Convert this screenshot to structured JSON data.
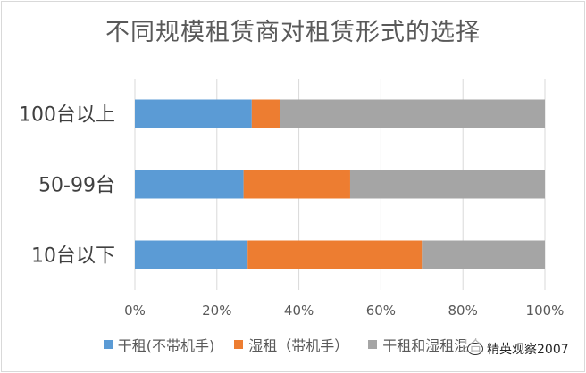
{
  "chart_data": {
    "type": "bar",
    "orientation": "horizontal",
    "stacked": "percent",
    "title": "不同规模租赁商对租赁形式的选择",
    "categories": [
      "100台以上",
      "50-99台",
      "10台以下"
    ],
    "series": [
      {
        "name": "干租(不带机手)",
        "values": [
          28.5,
          26.5,
          27.5
        ],
        "color": "#5b9bd5"
      },
      {
        "name": "湿租（带机手）",
        "values": [
          7.0,
          26.0,
          42.5
        ],
        "color": "#ed7d31"
      },
      {
        "name": "干租和湿租混合",
        "values": [
          64.5,
          47.5,
          30.0
        ],
        "color": "#a5a5a5"
      }
    ],
    "xlim": [
      0,
      100
    ],
    "xticks": [
      "0%",
      "20%",
      "40%",
      "60%",
      "80%",
      "100%"
    ],
    "grid": true,
    "legend_position": "bottom"
  },
  "watermark": {
    "text": "精英观察2007",
    "icon": "wechat-icon"
  }
}
